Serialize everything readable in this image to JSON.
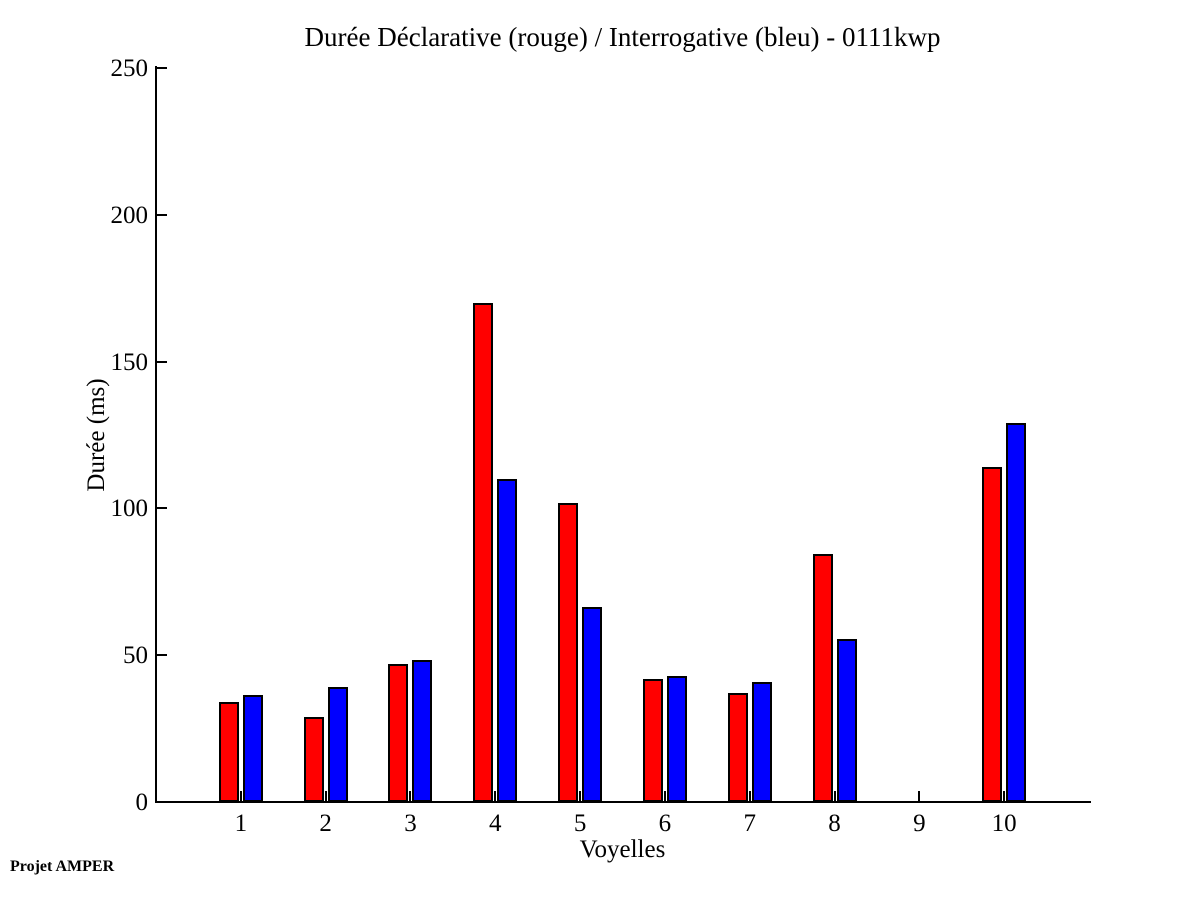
{
  "figure": {
    "footer": "Projet AMPER"
  },
  "chart_data": {
    "type": "bar",
    "title": "Durée Déclarative (rouge) / Interrogative (bleu) - 0111kwp",
    "xlabel": "Voyelles",
    "ylabel": "Durée (ms)",
    "categories": [
      "1",
      "2",
      "3",
      "4",
      "5",
      "6",
      "7",
      "8",
      "9",
      "10"
    ],
    "series": [
      {
        "name": "Déclarative (rouge)",
        "color": "#FF0000",
        "values": [
          34,
          29,
          47,
          170,
          102,
          42,
          37,
          84.5,
          0,
          114
        ]
      },
      {
        "name": "Interrogative (bleu)",
        "color": "#0000FF",
        "values": [
          36.5,
          39,
          48.5,
          110,
          66.5,
          43,
          41,
          55.5,
          0,
          129
        ]
      }
    ],
    "ylim": [
      0,
      250
    ],
    "yticks": [
      0,
      50,
      100,
      150,
      200,
      250
    ],
    "xlim": [
      0,
      11
    ],
    "grid": false,
    "legend_position": "none",
    "axis_color": "#000000",
    "background_color": "#FFFFFF"
  }
}
